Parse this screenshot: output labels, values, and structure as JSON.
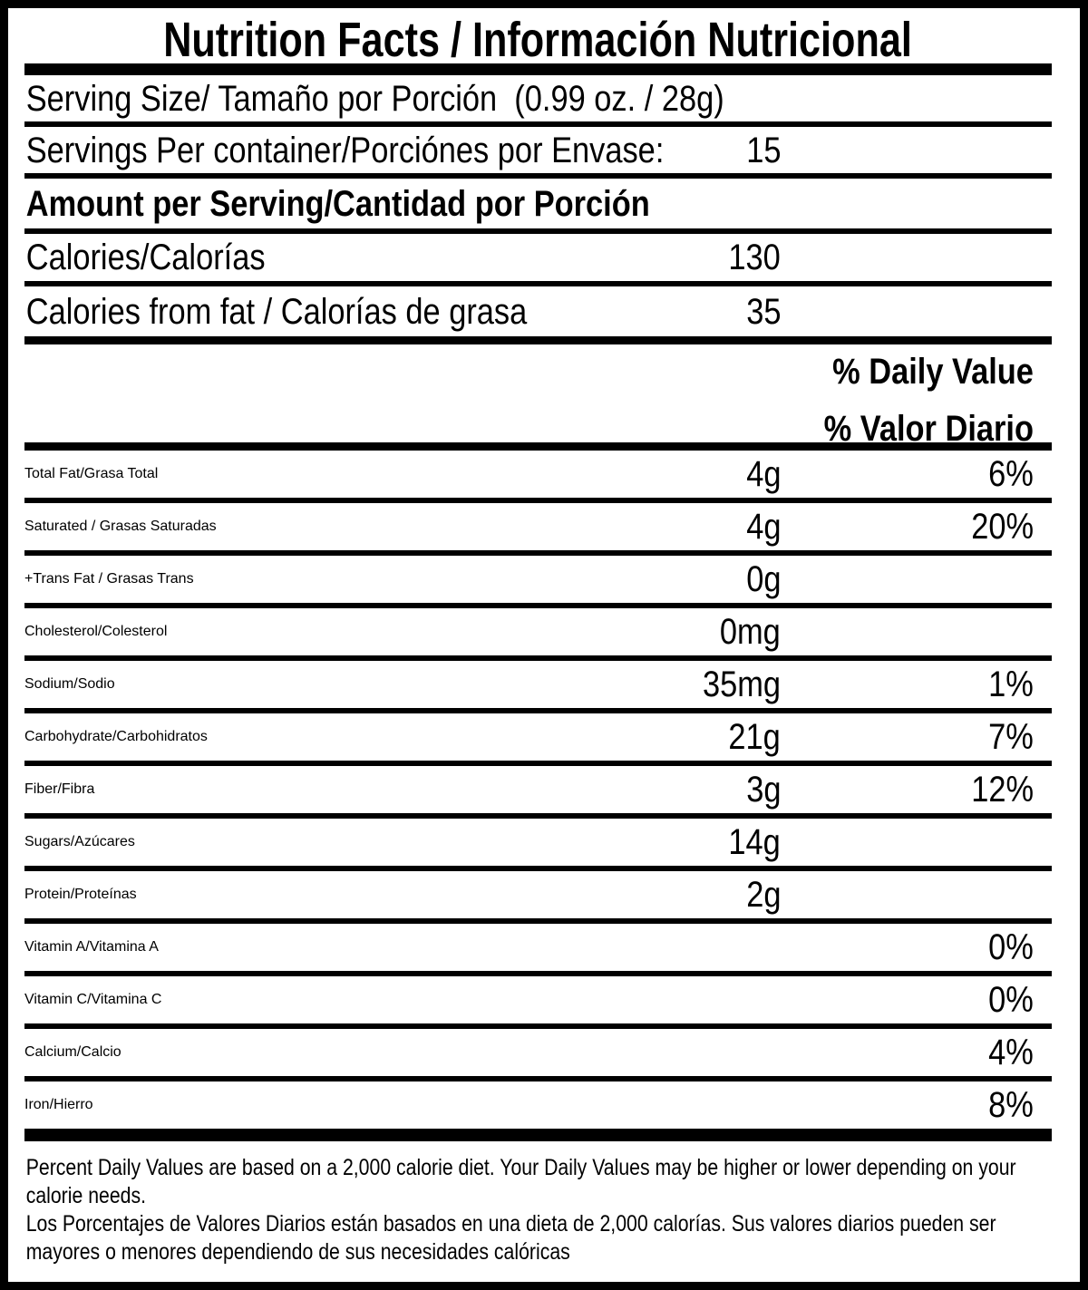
{
  "label": {
    "title": "Nutrition Facts / Información Nutricional",
    "serving_size": "Serving Size/ Tamaño por Porción  (0.99 oz. / 28g)",
    "servings_per_container": {
      "label": "Servings Per container/Porciónes por Envase:",
      "value": "15"
    },
    "amount_per_serving_header": "Amount per Serving/Cantidad por Porción",
    "calories": {
      "label": "Calories/Calorías",
      "value": "130"
    },
    "calories_from_fat": {
      "label": "Calories from fat / Calorías de grasa",
      "value": "35"
    },
    "daily_value_header": {
      "en": "% Daily Value",
      "es": "% Valor Diario"
    },
    "nutrients": [
      {
        "label": "Total Fat/Grasa Total",
        "amount": "4g",
        "dv": "6%"
      },
      {
        "label": "Saturated / Grasas Saturadas",
        "amount": "4g",
        "dv": "20%"
      },
      {
        "label": "+Trans Fat / Grasas Trans",
        "amount": "0g",
        "dv": ""
      },
      {
        "label": "Cholesterol/Colesterol",
        "amount": "0mg",
        "dv": ""
      },
      {
        "label": "Sodium/Sodio",
        "amount": "35mg",
        "dv": "1%"
      },
      {
        "label": "Carbohydrate/Carbohidratos",
        "amount": "21g",
        "dv": "7%"
      },
      {
        "label": "Fiber/Fibra",
        "amount": "3g",
        "dv": "12%"
      },
      {
        "label": "Sugars/Azúcares",
        "amount": "14g",
        "dv": ""
      },
      {
        "label": "Protein/Proteínas",
        "amount": "2g",
        "dv": ""
      },
      {
        "label": "Vitamin A/Vitamina A",
        "amount": "",
        "dv": "0%"
      },
      {
        "label": "Vitamin C/Vitamina C",
        "amount": "",
        "dv": "0%"
      },
      {
        "label": "Calcium/Calcio",
        "amount": "",
        "dv": "4%"
      },
      {
        "label": "Iron/Hierro",
        "amount": "",
        "dv": "8%"
      }
    ],
    "footnote_en": "Percent Daily Values are based on a 2,000 calorie diet. Your Daily Values may be higher or lower depending on your calorie needs.",
    "footnote_es": "Los Porcentajes de Valores Diarios están basados en una dieta de 2,000 calorías. Sus valores diarios pueden ser mayores o menores dependiendo de sus necesidades calóricas",
    "colors": {
      "ink": "#000000",
      "paper": "#ffffff"
    }
  }
}
